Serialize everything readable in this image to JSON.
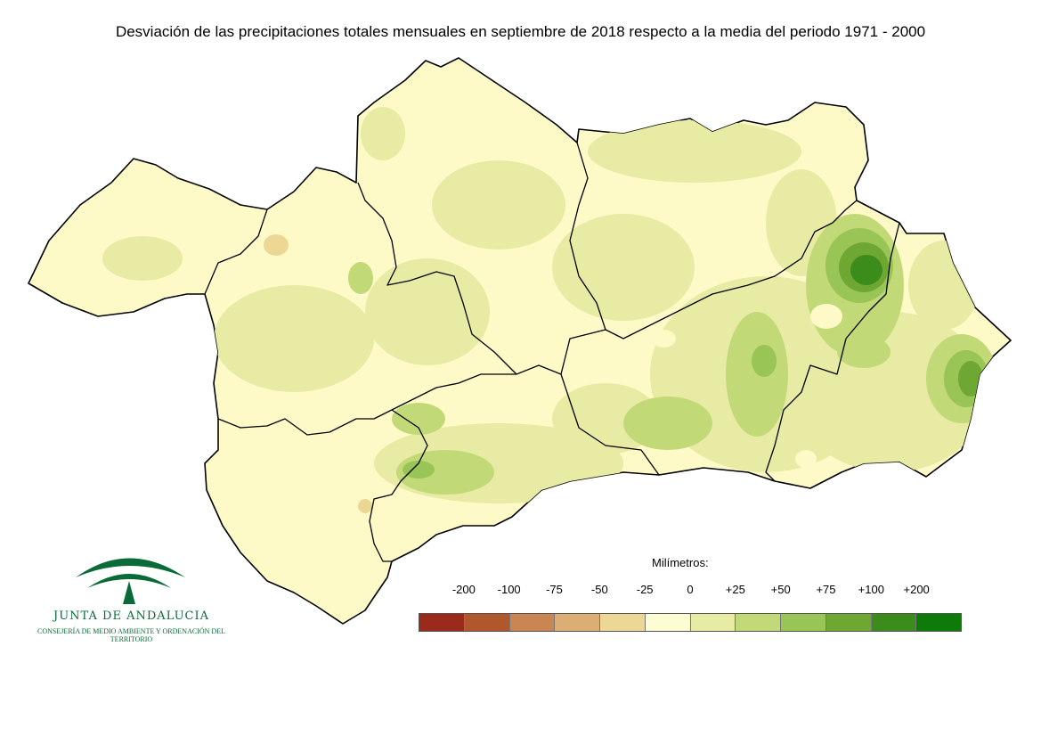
{
  "title": "Desviación de las precipitaciones totales mensuales en septiembre de 2018 respecto a la media del periodo 1971 - 2000",
  "legend": {
    "title": "Milímetros:",
    "ticks": [
      "-200",
      "-100",
      "-75",
      "-50",
      "-25",
      "0",
      "+25",
      "+50",
      "+75",
      "+100",
      "+200"
    ],
    "colors": [
      "#9a2a1c",
      "#b0582c",
      "#c98552",
      "#dcae74",
      "#ecd894",
      "#fefcd2",
      "#e8eba4",
      "#c2d978",
      "#99c456",
      "#6ea833",
      "#3c8c1c",
      "#0e7a08"
    ]
  },
  "map": {
    "background_color": "#fefac8",
    "border_color": "#000000"
  },
  "logo": {
    "name": "JUNTA DE ANDALUCIA",
    "subtitle": "CONSEJERÍA DE MEDIO AMBIENTE Y ORDENACIÓN DEL TERRITORIO",
    "color": "#0a6a38"
  }
}
